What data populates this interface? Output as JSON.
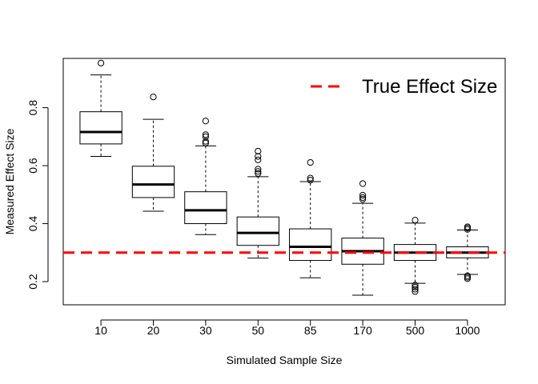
{
  "chart_data": {
    "type": "boxplot",
    "title": "",
    "xlabel": "Simulated Sample Size",
    "ylabel": "Measured Effect Size",
    "categories": [
      "10",
      "20",
      "30",
      "50",
      "85",
      "170",
      "500",
      "1000"
    ],
    "ylim": [
      0.12,
      0.97
    ],
    "yticks": [
      0.2,
      0.4,
      0.6,
      0.8
    ],
    "ytick_labels": [
      "0.2",
      "0.4",
      "0.6",
      "0.8"
    ],
    "boxes": [
      {
        "category": "10",
        "whisker_low": 0.632,
        "q1": 0.675,
        "median": 0.716,
        "q3": 0.786,
        "whisker_high": 0.913,
        "outliers": [
          0.954
        ]
      },
      {
        "category": "20",
        "whisker_low": 0.443,
        "q1": 0.49,
        "median": 0.535,
        "q3": 0.598,
        "whisker_high": 0.76,
        "outliers": [
          0.837
        ]
      },
      {
        "category": "30",
        "whisker_low": 0.362,
        "q1": 0.4,
        "median": 0.446,
        "q3": 0.51,
        "whisker_high": 0.668,
        "outliers": [
          0.678,
          0.684,
          0.7,
          0.707,
          0.754
        ]
      },
      {
        "category": "50",
        "whisker_low": 0.281,
        "q1": 0.325,
        "median": 0.368,
        "q3": 0.423,
        "whisker_high": 0.562,
        "outliers": [
          0.573,
          0.58,
          0.588,
          0.62,
          0.632,
          0.65
        ]
      },
      {
        "category": "85",
        "whisker_low": 0.213,
        "q1": 0.273,
        "median": 0.32,
        "q3": 0.382,
        "whisker_high": 0.545,
        "outliers": [
          0.55,
          0.557,
          0.611
        ]
      },
      {
        "category": "170",
        "whisker_low": 0.153,
        "q1": 0.26,
        "median": 0.305,
        "q3": 0.35,
        "whisker_high": 0.47,
        "outliers": [
          0.484,
          0.49,
          0.498,
          0.538
        ]
      },
      {
        "category": "500",
        "whisker_low": 0.194,
        "q1": 0.273,
        "median": 0.3,
        "q3": 0.328,
        "whisker_high": 0.402,
        "outliers": [
          0.166,
          0.174,
          0.181,
          0.188,
          0.412
        ]
      },
      {
        "category": "1000",
        "whisker_low": 0.225,
        "q1": 0.282,
        "median": 0.3,
        "q3": 0.32,
        "whisker_high": 0.378,
        "outliers": [
          0.21,
          0.215,
          0.22,
          0.38,
          0.385,
          0.389
        ]
      }
    ],
    "reference_line": {
      "label": "True Effect Size",
      "value": 0.3,
      "color": "#ff0000",
      "style": "dashed"
    },
    "legend": {
      "position": "top-right",
      "entries": [
        "True Effect Size"
      ]
    },
    "grid": false
  }
}
